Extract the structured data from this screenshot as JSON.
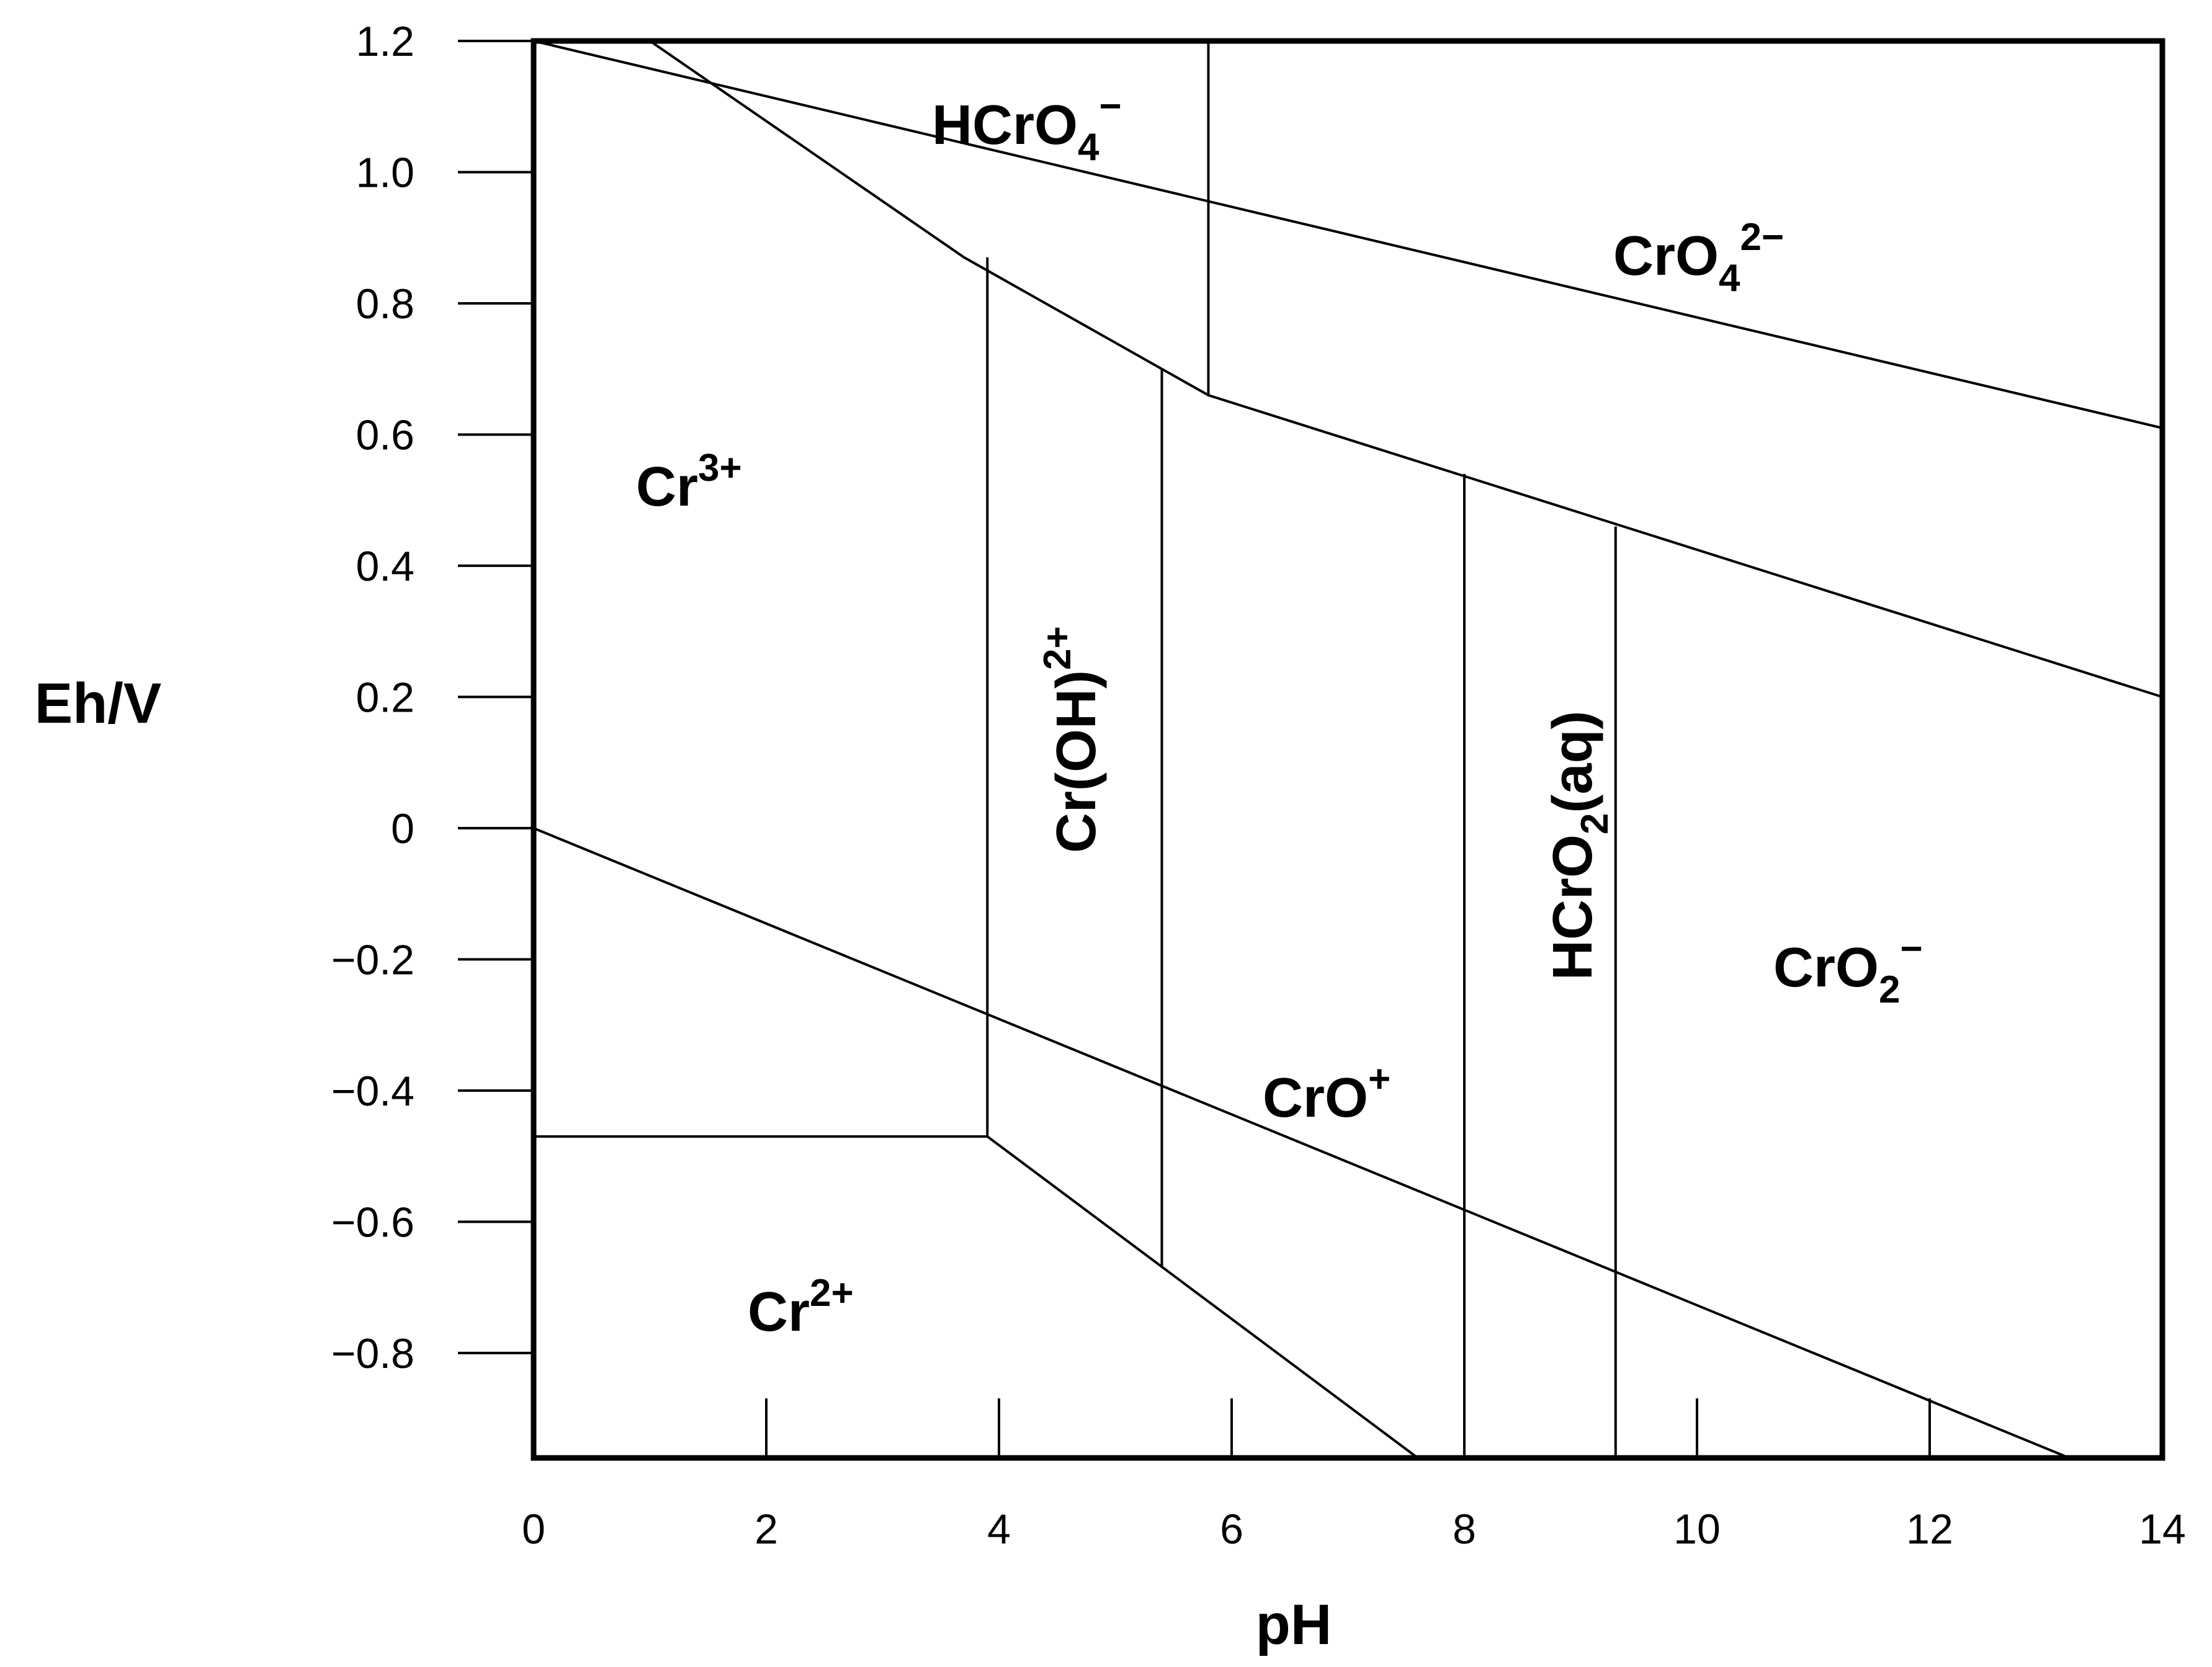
{
  "chart_data": {
    "type": "line",
    "title": "",
    "xlabel": "pH",
    "ylabel": "Eh/V",
    "xlim": [
      0,
      14
    ],
    "ylim": [
      -0.96,
      1.2
    ],
    "x_ticks": [
      0,
      2,
      4,
      6,
      8,
      10,
      12,
      14
    ],
    "x_tick_labels": [
      "0",
      "2",
      "4",
      "6",
      "8",
      "10",
      "12",
      "14"
    ],
    "y_ticks": [
      1.2,
      1.0,
      0.8,
      0.6,
      0.4,
      0.2,
      0,
      -0.2,
      -0.4,
      -0.6,
      -0.8
    ],
    "y_tick_labels": [
      "1.2",
      "1.0",
      "0.8",
      "0.6",
      "0.4",
      "0.2",
      "0",
      "−0.2",
      "−0.4",
      "−0.6",
      "−0.8"
    ],
    "boundaries": [
      {
        "name": "water-oxidation-line",
        "points": [
          [
            0,
            1.2
          ],
          [
            14,
            0.61
          ]
        ]
      },
      {
        "name": "water-reduction-line",
        "points": [
          [
            0,
            0.0
          ],
          [
            13.2,
            -0.96
          ]
        ]
      },
      {
        "name": "cr6-cr3-boundary",
        "points": [
          [
            1.0,
            1.2
          ],
          [
            3.7,
            0.87
          ],
          [
            5.4,
            0.7
          ],
          [
            5.8,
            0.66
          ],
          [
            14,
            0.2
          ]
        ]
      },
      {
        "name": "hcro4-cro4-boundary",
        "points": [
          [
            5.8,
            1.2
          ],
          [
            5.8,
            0.66
          ]
        ]
      },
      {
        "name": "cr3-croh-boundary",
        "points": [
          [
            3.9,
            0.87
          ],
          [
            3.9,
            -0.47
          ]
        ]
      },
      {
        "name": "cr3-cr2-boundary",
        "points": [
          [
            0,
            -0.47
          ],
          [
            3.9,
            -0.47
          ]
        ]
      },
      {
        "name": "cr2-boundary",
        "points": [
          [
            3.9,
            -0.47
          ],
          [
            7.6,
            -0.96
          ]
        ]
      },
      {
        "name": "croh-cro-boundary",
        "points": [
          [
            5.4,
            0.7
          ],
          [
            5.4,
            -0.67
          ]
        ]
      },
      {
        "name": "cro-hcro2-boundary",
        "points": [
          [
            8.0,
            0.54
          ],
          [
            8.0,
            -0.96
          ]
        ]
      },
      {
        "name": "hcro2-cro2-boundary",
        "points": [
          [
            9.3,
            0.46
          ],
          [
            9.3,
            -0.96
          ]
        ]
      }
    ],
    "regions": [
      {
        "name": "region-hcro4",
        "base": "HCrO",
        "sub": "4",
        "sup": "−",
        "rot": 0
      },
      {
        "name": "region-cro4",
        "base": "CrO",
        "sub": "4",
        "sup": "2−",
        "rot": 0
      },
      {
        "name": "region-cr3",
        "base": "Cr",
        "sub": "",
        "sup": "3+",
        "rot": 0
      },
      {
        "name": "region-croh",
        "base": "Cr(OH)",
        "sub": "",
        "sup": "2+",
        "rot": -90
      },
      {
        "name": "region-hcro2",
        "base": "HCrO",
        "sub": "2",
        "post": "(aq)",
        "sup": "",
        "rot": -90
      },
      {
        "name": "region-cro2",
        "base": "CrO",
        "sub": "2",
        "sup": "−",
        "rot": 0
      },
      {
        "name": "region-cro",
        "base": "CrO",
        "sub": "",
        "sup": "+",
        "rot": 0
      },
      {
        "name": "region-cr2",
        "base": "Cr",
        "sub": "",
        "sup": "2+",
        "rot": 0
      }
    ]
  }
}
